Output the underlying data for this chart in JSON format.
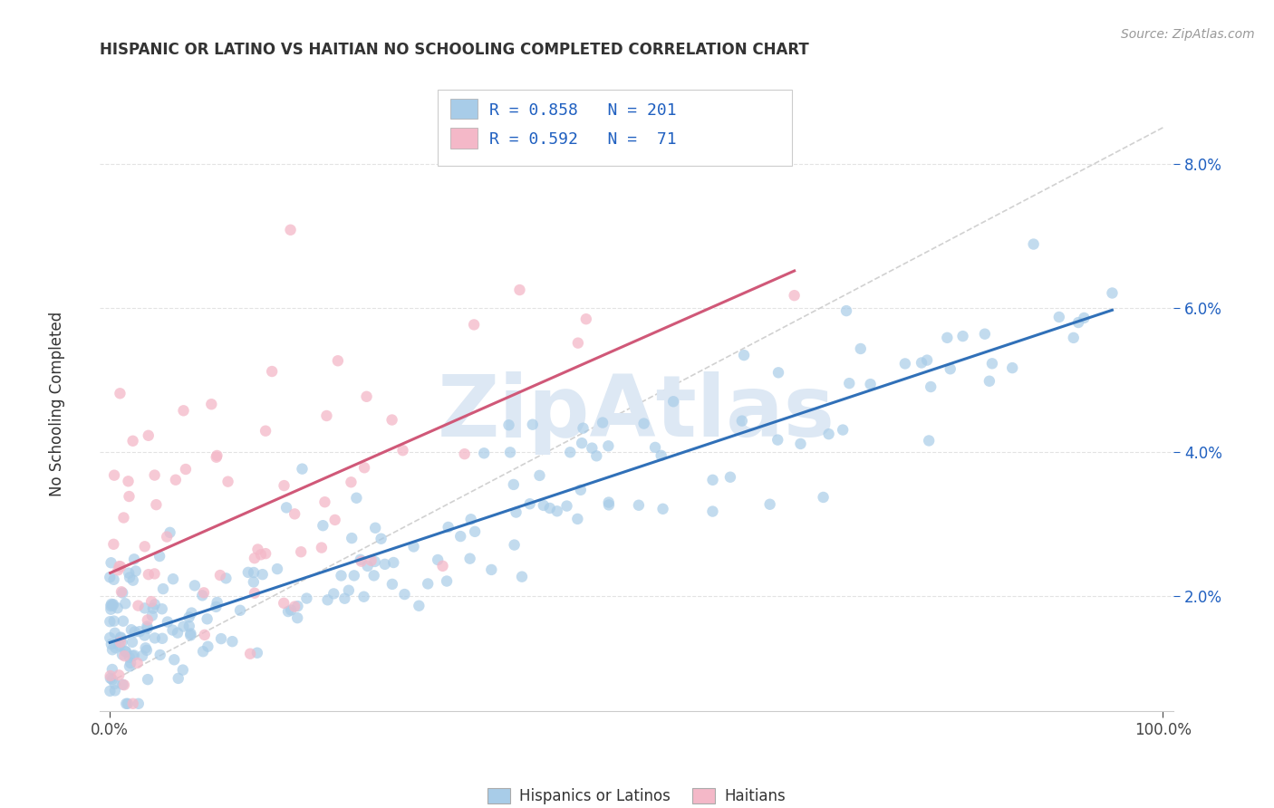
{
  "title": "HISPANIC OR LATINO VS HAITIAN NO SCHOOLING COMPLETED CORRELATION CHART",
  "source": "Source: ZipAtlas.com",
  "ylabel": "No Schooling Completed",
  "ytick_labels": [
    "2.0%",
    "4.0%",
    "6.0%",
    "8.0%"
  ],
  "ytick_values": [
    0.02,
    0.04,
    0.06,
    0.08
  ],
  "xlim": [
    -0.01,
    1.01
  ],
  "ylim": [
    0.004,
    0.092
  ],
  "blue_R": 0.858,
  "blue_N": 201,
  "pink_R": 0.592,
  "pink_N": 71,
  "blue_color": "#a8cce8",
  "pink_color": "#f4b8c8",
  "blue_line_color": "#3070b8",
  "pink_line_color": "#d05878",
  "diagonal_color": "#cccccc",
  "legend_border_color": "#cccccc",
  "title_color": "#333333",
  "source_color": "#999999",
  "label_color": "#2060c0",
  "grid_color": "#e0e0e0",
  "background_color": "#ffffff",
  "blue_seed": 42,
  "pink_seed": 123,
  "blue_n": 201,
  "pink_n": 71,
  "watermark_color": "#dde8f4",
  "legend_text_color": "#2060c0"
}
